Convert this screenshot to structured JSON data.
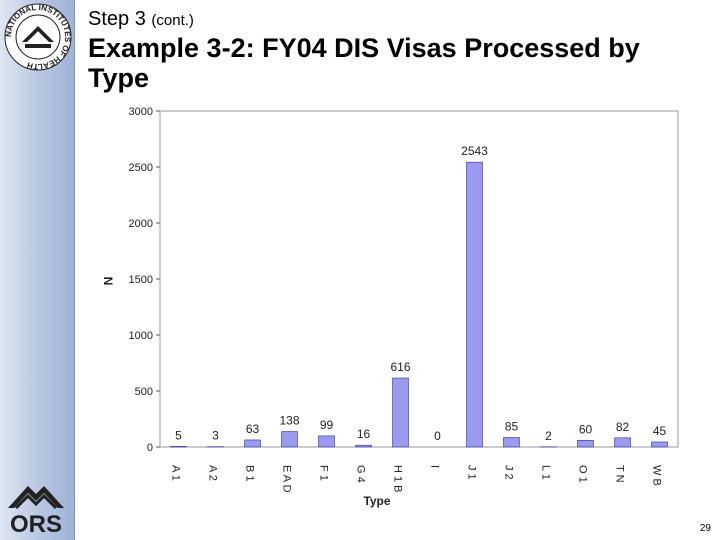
{
  "header": {
    "step_label": "Step 3",
    "step_suffix": "(cont.)",
    "title": "Example 3-2:  FY04 DIS Visas Processed by Type"
  },
  "logos": {
    "nih_text": "NATIONAL INSTITUTES OF HEALTH",
    "ors_text": "ORS"
  },
  "page_number": "29",
  "colors": {
    "bar_fill": "#9a9aee",
    "bar_stroke": "#333399",
    "sidebar": "#b7c6e2"
  },
  "chart_data": {
    "type": "bar",
    "xlabel": "Type",
    "ylabel": "N",
    "ylim": [
      0,
      3000
    ],
    "yticks": [
      0,
      500,
      1000,
      1500,
      2000,
      2500,
      3000
    ],
    "grid": false,
    "categories": [
      "A 1",
      "A 2",
      "B 1",
      "E A D",
      "F 1",
      "G 4",
      "H 1 B",
      "I",
      "J 1",
      "J 2",
      "L 1",
      "O 1",
      "T N",
      "W B"
    ],
    "values": [
      5,
      3,
      63,
      138,
      99,
      16,
      616,
      0,
      2543,
      85,
      2,
      60,
      82,
      45
    ]
  }
}
